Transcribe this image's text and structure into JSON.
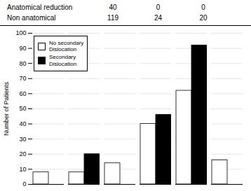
{
  "chart_data": {
    "type": "bar",
    "table": [
      [
        "Anatomical reduction",
        "40",
        "0",
        "0"
      ],
      [
        "Non anatomical",
        "119",
        "24",
        "20"
      ]
    ],
    "categories": [
      null,
      null,
      null,
      null,
      null,
      null
    ],
    "series": [
      {
        "name": "No secondary\nDislocation",
        "color": "#ffffff",
        "values": [
          8,
          8,
          14,
          40,
          62,
          16
        ]
      },
      {
        "name": "Secondary\nDislocation",
        "color": "#000000",
        "values": [
          0,
          20,
          0,
          46,
          92,
          0
        ]
      }
    ],
    "ylabel": "Number of Patients",
    "ylim": [
      0,
      100
    ],
    "yticks": [
      0,
      10,
      20,
      30,
      40,
      50,
      60,
      70,
      80,
      90,
      100
    ],
    "grid": true,
    "legend": "upper left",
    "tick_labels": "y"
  }
}
